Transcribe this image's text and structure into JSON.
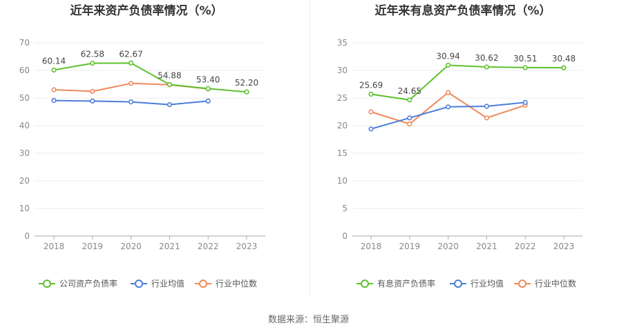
{
  "source_text": "数据来源：恒生聚源",
  "chart_data": [
    {
      "type": "line",
      "title": "近年来资产负债率情况（%）",
      "categories": [
        "2018",
        "2019",
        "2020",
        "2021",
        "2022",
        "2023"
      ],
      "ylim": [
        0,
        70
      ],
      "yticks": [
        0,
        10,
        20,
        30,
        40,
        50,
        60,
        70
      ],
      "grid": true,
      "legend_position": "bottom",
      "series": [
        {
          "name": "公司资产负债率",
          "color": "#5ec12d",
          "values": [
            60.14,
            62.58,
            62.67,
            54.88,
            53.4,
            52.2
          ],
          "labels": [
            "60.14",
            "62.58",
            "62.67",
            "54.88",
            "53.40",
            "52.20"
          ]
        },
        {
          "name": "行业均值",
          "color": "#4a7ddb",
          "values": [
            49.1,
            48.9,
            48.6,
            47.6,
            48.9,
            null
          ]
        },
        {
          "name": "行业中位数",
          "color": "#f0885a",
          "values": [
            53.0,
            52.4,
            55.3,
            54.8,
            53.3,
            null
          ]
        }
      ]
    },
    {
      "type": "line",
      "title": "近年来有息资产负债率情况（%）",
      "categories": [
        "2018",
        "2019",
        "2020",
        "2021",
        "2022",
        "2023"
      ],
      "ylim": [
        0,
        35
      ],
      "yticks": [
        0,
        5,
        10,
        15,
        20,
        25,
        30,
        35
      ],
      "grid": true,
      "legend_position": "bottom",
      "series": [
        {
          "name": "有息资产负债率",
          "color": "#5ec12d",
          "values": [
            25.69,
            24.65,
            30.94,
            30.62,
            30.51,
            30.48
          ],
          "labels": [
            "25.69",
            "24.65",
            "30.94",
            "30.62",
            "30.51",
            "30.48"
          ]
        },
        {
          "name": "行业均值",
          "color": "#4a7ddb",
          "values": [
            19.4,
            21.4,
            23.4,
            23.5,
            24.2,
            null
          ]
        },
        {
          "name": "行业中位数",
          "color": "#f0885a",
          "values": [
            22.5,
            20.3,
            26.0,
            21.4,
            23.7,
            null
          ]
        }
      ]
    }
  ]
}
